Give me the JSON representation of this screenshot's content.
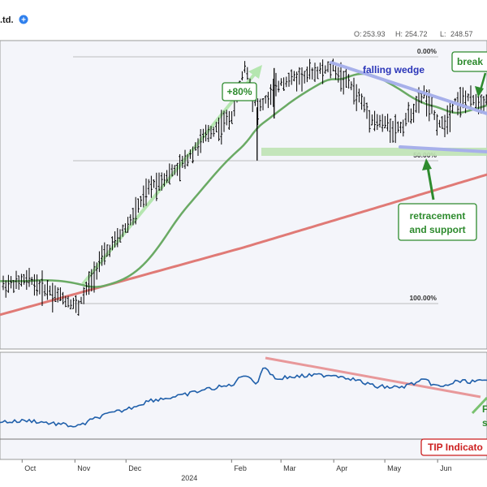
{
  "header": {
    "title_fragment": ".td.",
    "ohlc": {
      "open_label": "O:",
      "open": "253.93",
      "high_label": "H:",
      "high": "254.72",
      "low_label": "L:",
      "low": "248.57"
    }
  },
  "colors": {
    "price_bar": "#000000",
    "sma_green": "#6aaa64",
    "sma_red": "#e07a76",
    "wedge": "#a7b0ea",
    "support_zone": "#bfe3b4",
    "indicator_line": "#1f5faa",
    "indicator_trend": "#e8989a",
    "arrow_green": "#2e8b2e",
    "arrow_light_green": "#b5e6b0",
    "tip_red": "#cc1f1f",
    "panel_bg": "#f4f5fa"
  },
  "chart_data": [
    {
      "type": "ohlc",
      "x_labels": [
        "Oct",
        "Nov",
        "Dec",
        "2024",
        "Feb",
        "Mar",
        "Apr",
        "May",
        "Jun"
      ],
      "price_high_points": [
        [
          "2023-09-25",
          170
        ],
        [
          "2023-10-05",
          172
        ],
        [
          "2023-10-25",
          165
        ],
        [
          "2023-11-03",
          162
        ],
        [
          "2023-11-15",
          178
        ],
        [
          "2023-12-01",
          190
        ],
        [
          "2023-12-15",
          205
        ],
        [
          "2024-01-02",
          212
        ],
        [
          "2024-01-15",
          222
        ],
        [
          "2024-02-01",
          230
        ],
        [
          "2024-02-09",
          249
        ],
        [
          "2024-02-16",
          232
        ],
        [
          "2024-03-01",
          242
        ],
        [
          "2024-03-20",
          246
        ],
        [
          "2024-04-01",
          247
        ],
        [
          "2024-04-10",
          242
        ],
        [
          "2024-04-25",
          228
        ],
        [
          "2024-05-10",
          226
        ],
        [
          "2024-05-24",
          238
        ],
        [
          "2024-06-03",
          226
        ],
        [
          "2024-06-12",
          236
        ]
      ],
      "fib_levels": [
        {
          "label": "0.00%",
          "value": 250
        },
        {
          "label": "50.00%",
          "value": 206
        },
        {
          "label": "100.00%",
          "value": 162
        }
      ],
      "annotations": [
        {
          "text": "+80%"
        },
        {
          "text": "falling wedge"
        },
        {
          "text": "break"
        },
        {
          "text": "retracement\nand support"
        }
      ],
      "moving_averages": [
        {
          "color": "#6aaa64"
        },
        {
          "color": "#e07a76"
        }
      ]
    },
    {
      "type": "line",
      "annotations": [
        {
          "text": "TIP Indicato"
        },
        {
          "text": "F"
        },
        {
          "text": "s"
        }
      ]
    }
  ]
}
